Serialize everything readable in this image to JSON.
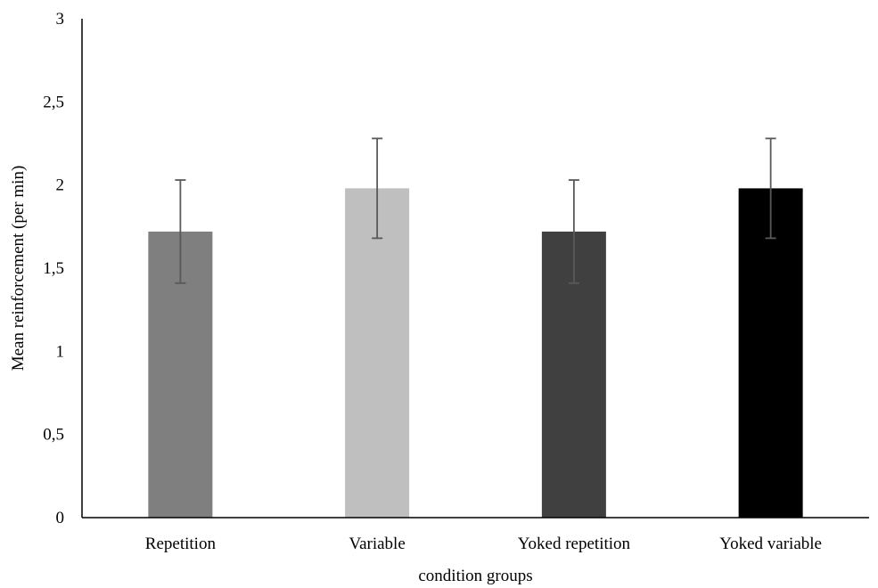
{
  "chart_data": {
    "type": "bar",
    "categories": [
      "Repetition",
      "Variable",
      "Yoked repetition",
      "Yoked variable"
    ],
    "values": [
      1.72,
      1.98,
      1.72,
      1.98
    ],
    "error": [
      0.31,
      0.3,
      0.31,
      0.3
    ],
    "bar_colors": [
      "#7f7f7f",
      "#bfbfbf",
      "#404040",
      "#000000"
    ],
    "error_bar_color": "#595959",
    "xlabel": "condition groups",
    "ylabel": "Mean reinforcement (per min)",
    "ylim": [
      0,
      3
    ],
    "yticks": [
      0,
      0.5,
      1,
      1.5,
      2,
      2.5,
      3
    ],
    "ytick_labels": [
      "0",
      "0,5",
      "1",
      "1,5",
      "2",
      "2,5",
      "3"
    ],
    "grid": false,
    "legend": "none"
  }
}
